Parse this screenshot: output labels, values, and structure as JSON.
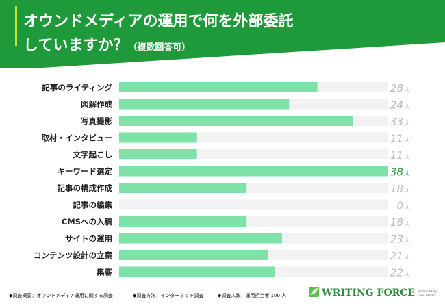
{
  "header": {
    "title_line1": "オウンドメディアの運用で何を外部委託",
    "title_line2_main": "していますか？",
    "title_line2_note": "（複数回答可）"
  },
  "chart_data": {
    "type": "bar",
    "orientation": "horizontal",
    "categories": [
      "記事のライティング",
      "図解作成",
      "写真撮影",
      "取材・インタビュー",
      "文字起こし",
      "キーワード選定",
      "記事の構成作成",
      "記事の編集",
      "CMSへの入稿",
      "サイトの運用",
      "コンテンツ設計の立案",
      "集客"
    ],
    "values": [
      28,
      24,
      33,
      11,
      11,
      38,
      18,
      0,
      18,
      23,
      21,
      22
    ],
    "unit": "人",
    "xlim": [
      0,
      38
    ],
    "highlight_index": 5,
    "colors": {
      "bar": "#7ee2a8",
      "track": "#f2f2f2",
      "value": "#bbbbbb",
      "highlight_value": "#2ea043"
    }
  },
  "footer": {
    "survey_summary": "◆調査概要：オウンドメディア運用に関する調査",
    "survey_method": "◆調査方法：インターネット調査",
    "survey_count": "◆調査人数：運用担当者 100 人"
  },
  "brand": {
    "name": "WRITING FORCE",
    "byline1": "Produced by",
    "byline2": "and media",
    "logo_icon": "leaf-icon"
  },
  "colors": {
    "header_green": "#1f9a3a",
    "header_accent": "#c9e234"
  }
}
